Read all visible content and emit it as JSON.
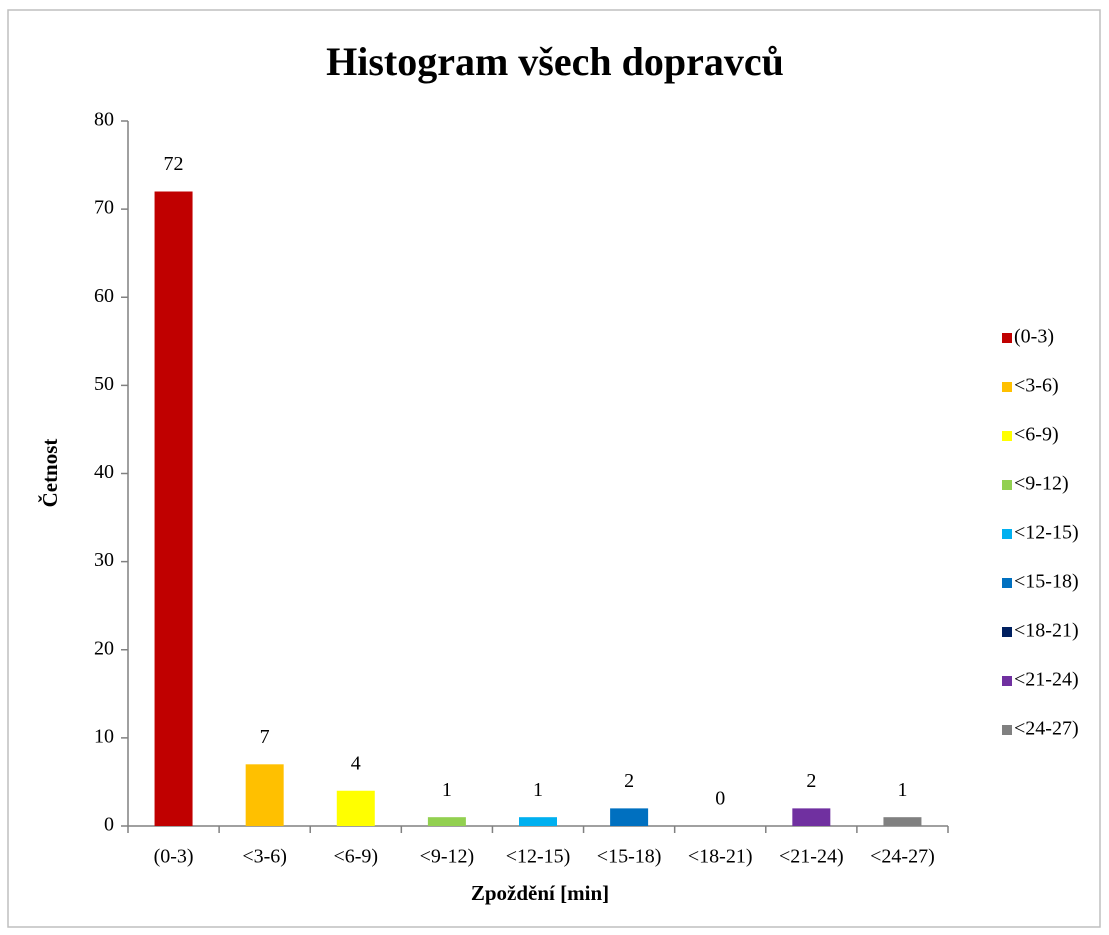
{
  "chart_data": {
    "type": "bar",
    "title": "Histogram všech dopravců",
    "x_label": "Zpoždění [min]",
    "y_label": "Četnost",
    "categories": [
      "(0-3)",
      "<3-6)",
      "<6-9)",
      "<9-12)",
      "<12-15)",
      "<15-18)",
      "<18-21)",
      "<21-24)",
      "<24-27)"
    ],
    "values": [
      72,
      7,
      4,
      1,
      1,
      2,
      0,
      2,
      1
    ],
    "colors": [
      "#c00000",
      "#ffc000",
      "#ffff00",
      "#92d050",
      "#00b0f0",
      "#0070c0",
      "#002060",
      "#7030a0",
      "#808080"
    ],
    "ylim": [
      0,
      80
    ],
    "yticks": [
      0,
      10,
      20,
      30,
      40,
      50,
      60,
      70,
      80
    ],
    "grid": false,
    "legend": "right"
  }
}
